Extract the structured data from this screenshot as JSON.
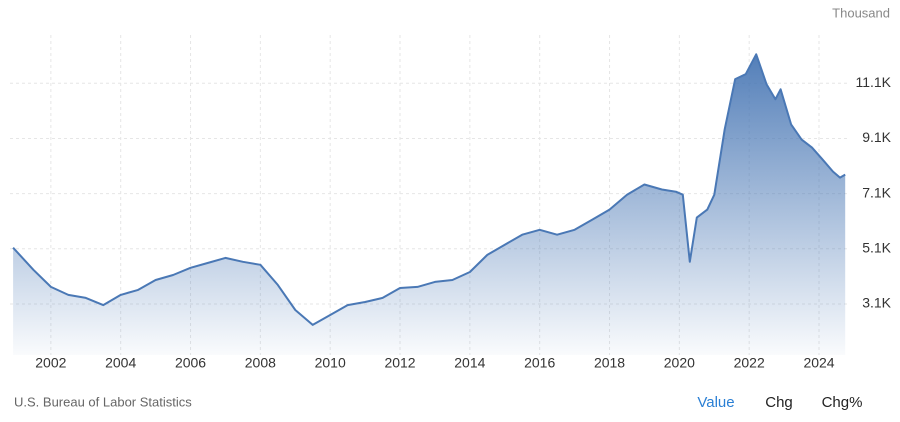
{
  "chart_data": {
    "type": "area",
    "unit_label": "Thousand",
    "source": "U.S. Bureau of Labor Statistics",
    "color": "#4a78b5",
    "grid": true,
    "x": [
      2000.92,
      2001.5,
      2002,
      2002.5,
      2003,
      2003.5,
      2004,
      2004.5,
      2005,
      2005.5,
      2006,
      2006.5,
      2007,
      2007.5,
      2008,
      2008.5,
      2009,
      2009.5,
      2010,
      2010.5,
      2011,
      2011.5,
      2012,
      2012.5,
      2013,
      2013.5,
      2014,
      2014.5,
      2015,
      2015.5,
      2016,
      2016.5,
      2017,
      2017.5,
      2018,
      2018.5,
      2019,
      2019.5,
      2019.9,
      2020.1,
      2020.3,
      2020.5,
      2020.8,
      2021,
      2021.3,
      2021.6,
      2021.9,
      2022.2,
      2022.5,
      2022.75,
      2022.9,
      2023.2,
      2023.5,
      2023.8,
      2024.1,
      2024.4,
      2024.6,
      2024.75
    ],
    "values": [
      5140,
      4340,
      3720,
      3430,
      3320,
      3060,
      3430,
      3610,
      3970,
      4150,
      4410,
      4590,
      4770,
      4630,
      4520,
      3790,
      2880,
      2340,
      2700,
      3060,
      3170,
      3320,
      3680,
      3720,
      3900,
      3970,
      4260,
      4880,
      5250,
      5610,
      5790,
      5610,
      5790,
      6150,
      6520,
      7060,
      7430,
      7250,
      7170,
      7060,
      4630,
      6230,
      6520,
      7060,
      9430,
      11250,
      11430,
      12150,
      11060,
      10520,
      10880,
      9610,
      9060,
      8770,
      8340,
      7900,
      7680,
      7790
    ],
    "xlim": [
      2000.83,
      2024.83
    ],
    "xticks": [
      2002,
      2004,
      2006,
      2008,
      2010,
      2012,
      2014,
      2016,
      2018,
      2020,
      2022,
      2024
    ],
    "ylim": [
      1250,
      12850
    ],
    "yticks": [
      {
        "value": 3100,
        "label": "3.1K"
      },
      {
        "value": 5100,
        "label": "5.1K"
      },
      {
        "value": 7100,
        "label": "7.1K"
      },
      {
        "value": 9100,
        "label": "9.1K"
      },
      {
        "value": 11100,
        "label": "11.1K"
      }
    ]
  },
  "controls": [
    "Value",
    "Chg",
    "Chg%"
  ]
}
